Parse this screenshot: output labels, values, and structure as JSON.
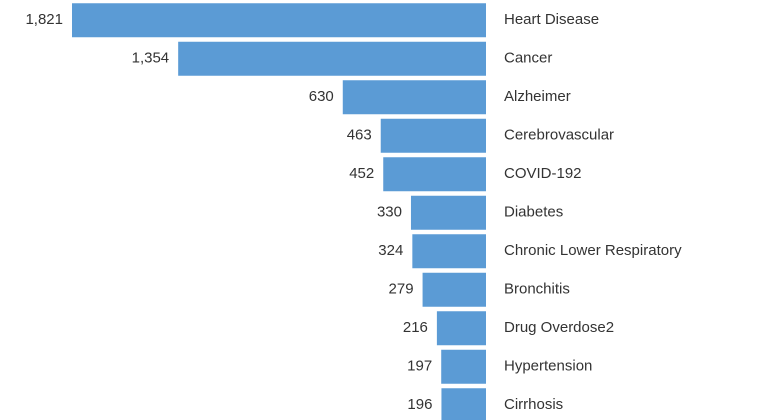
{
  "chart_data": {
    "type": "bar",
    "categories": [
      "Heart Disease",
      "Cancer",
      "Alzheimer",
      "Cerebrovascular",
      "COVID-192",
      "Diabetes",
      "Chronic Lower Respiratory",
      "Bronchitis",
      "Drug Overdose2",
      "Hypertension",
      "Cirrhosis"
    ],
    "values": [
      1821,
      1354,
      630,
      463,
      452,
      330,
      324,
      279,
      216,
      197,
      196
    ],
    "value_labels": [
      "1,821",
      "1,354",
      "630",
      "463",
      "452",
      "330",
      "324",
      "279",
      "216",
      "197",
      "196"
    ],
    "color": "#5b9bd5"
  }
}
